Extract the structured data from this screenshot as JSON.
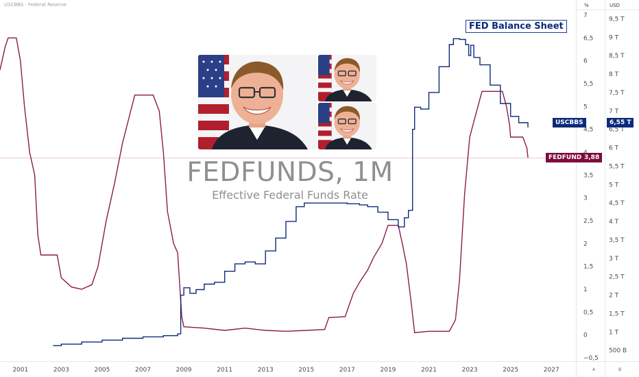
{
  "header": {
    "source_title": "USCBBS · Federal Reserve",
    "axis_left_unit": "%",
    "axis_right_unit": "USD"
  },
  "corner_labels": {
    "left": "A",
    "right": "B"
  },
  "watermark": {
    "symbol": "FEDFUNDS, 1M",
    "description": "Effective Federal Funds Rate"
  },
  "annotation": {
    "text": "FED Balance Sheet"
  },
  "photos": [
    {
      "subject": "portrait",
      "background": "us-flag"
    },
    {
      "subject": "portrait",
      "background": "us-flag"
    },
    {
      "subject": "portrait",
      "background": "us-flag"
    }
  ],
  "tags": {
    "balance_sheet": {
      "name": "USCBBS",
      "value": "6,55 T"
    },
    "fed_funds": {
      "name": "FEDFUNDS",
      "value": "3,88"
    }
  },
  "colors": {
    "fedfunds_line": "#8b1a45",
    "balance_line": "#0b2a7a",
    "fedfunds_tag": "#7d0b3d",
    "balance_tag": "#0b2a7a",
    "axis_text": "#4a4a4a",
    "crosshair": "#e6c7d1"
  },
  "chart_data": {
    "type": "line",
    "x_axis": {
      "ticks": [
        "2001",
        "2003",
        "2005",
        "2007",
        "2009",
        "2011",
        "2013",
        "2015",
        "2017",
        "2019",
        "2021",
        "2023",
        "2025",
        "2027"
      ],
      "range": [
        2000.0,
        2028.2
      ]
    },
    "y_axes": {
      "left": {
        "unit": "%",
        "ticks": [
          "−0,5",
          "0",
          "0,5",
          "1",
          "1,5",
          "2",
          "2,5",
          "3",
          "3,5",
          "4",
          "4,5",
          "5",
          "5,5",
          "6",
          "6,5",
          "7"
        ],
        "range": [
          -0.5,
          7.0
        ]
      },
      "right": {
        "unit": "USD",
        "ticks": [
          "500 B",
          "1 T",
          "1,5 T",
          "2 T",
          "2,5 T",
          "3 T",
          "3,5 T",
          "4 T",
          "4,5 T",
          "5 T",
          "5,5 T",
          "6 T",
          "6,5 T",
          "7 T",
          "7,5 T",
          "8 T",
          "8,5 T",
          "9 T",
          "9,5 T"
        ],
        "range_trillions": [
          0.3,
          9.6
        ]
      }
    },
    "grid": false,
    "series": [
      {
        "name": "FEDFUNDS",
        "axis": "left",
        "unit": "%",
        "points": [
          [
            2000.0,
            5.8
          ],
          [
            2000.25,
            6.3
          ],
          [
            2000.4,
            6.5
          ],
          [
            2000.8,
            6.5
          ],
          [
            2001.0,
            6.0
          ],
          [
            2001.2,
            5.0
          ],
          [
            2001.45,
            4.0
          ],
          [
            2001.7,
            3.5
          ],
          [
            2001.85,
            2.2
          ],
          [
            2002.0,
            1.75
          ],
          [
            2002.8,
            1.75
          ],
          [
            2003.0,
            1.25
          ],
          [
            2003.5,
            1.05
          ],
          [
            2004.0,
            1.0
          ],
          [
            2004.5,
            1.1
          ],
          [
            2004.8,
            1.5
          ],
          [
            2005.2,
            2.5
          ],
          [
            2005.6,
            3.3
          ],
          [
            2006.0,
            4.2
          ],
          [
            2006.4,
            4.9
          ],
          [
            2006.6,
            5.25
          ],
          [
            2007.5,
            5.25
          ],
          [
            2007.8,
            4.9
          ],
          [
            2008.0,
            4.0
          ],
          [
            2008.2,
            2.7
          ],
          [
            2008.5,
            2.0
          ],
          [
            2008.7,
            1.8
          ],
          [
            2008.9,
            0.4
          ],
          [
            2009.0,
            0.18
          ],
          [
            2010.0,
            0.15
          ],
          [
            2011.0,
            0.1
          ],
          [
            2012.0,
            0.15
          ],
          [
            2013.0,
            0.1
          ],
          [
            2014.0,
            0.08
          ],
          [
            2015.0,
            0.1
          ],
          [
            2015.9,
            0.12
          ],
          [
            2016.1,
            0.38
          ],
          [
            2016.9,
            0.4
          ],
          [
            2017.1,
            0.66
          ],
          [
            2017.3,
            0.91
          ],
          [
            2017.6,
            1.15
          ],
          [
            2018.0,
            1.42
          ],
          [
            2018.3,
            1.7
          ],
          [
            2018.7,
            2.0
          ],
          [
            2019.0,
            2.4
          ],
          [
            2019.5,
            2.4
          ],
          [
            2019.7,
            2.0
          ],
          [
            2019.9,
            1.55
          ],
          [
            2020.15,
            0.65
          ],
          [
            2020.3,
            0.05
          ],
          [
            2021.0,
            0.08
          ],
          [
            2022.0,
            0.08
          ],
          [
            2022.3,
            0.33
          ],
          [
            2022.5,
            1.2
          ],
          [
            2022.75,
            3.1
          ],
          [
            2023.0,
            4.33
          ],
          [
            2023.3,
            4.83
          ],
          [
            2023.6,
            5.33
          ],
          [
            2024.6,
            5.33
          ],
          [
            2024.8,
            5.0
          ],
          [
            2024.95,
            4.6
          ],
          [
            2025.0,
            4.33
          ],
          [
            2025.6,
            4.33
          ],
          [
            2025.8,
            4.09
          ],
          [
            2025.85,
            3.88
          ]
        ]
      },
      {
        "name": "USCBBS",
        "axis": "right",
        "unit": "USD trillions",
        "points": [
          [
            2002.6,
            0.63
          ],
          [
            2003.0,
            0.67
          ],
          [
            2004.0,
            0.73
          ],
          [
            2005.0,
            0.78
          ],
          [
            2006.0,
            0.83
          ],
          [
            2007.0,
            0.87
          ],
          [
            2008.0,
            0.9
          ],
          [
            2008.7,
            0.95
          ],
          [
            2008.85,
            2.0
          ],
          [
            2009.0,
            2.2
          ],
          [
            2009.3,
            2.05
          ],
          [
            2009.6,
            2.15
          ],
          [
            2010.0,
            2.3
          ],
          [
            2010.5,
            2.35
          ],
          [
            2011.0,
            2.65
          ],
          [
            2011.5,
            2.85
          ],
          [
            2012.0,
            2.9
          ],
          [
            2012.5,
            2.85
          ],
          [
            2013.0,
            3.2
          ],
          [
            2013.5,
            3.55
          ],
          [
            2014.0,
            4.0
          ],
          [
            2014.5,
            4.4
          ],
          [
            2014.9,
            4.5
          ],
          [
            2016.0,
            4.5
          ],
          [
            2017.0,
            4.48
          ],
          [
            2017.6,
            4.45
          ],
          [
            2018.0,
            4.4
          ],
          [
            2018.5,
            4.25
          ],
          [
            2019.0,
            4.05
          ],
          [
            2019.5,
            3.85
          ],
          [
            2019.8,
            4.1
          ],
          [
            2020.0,
            4.3
          ],
          [
            2020.2,
            6.5
          ],
          [
            2020.3,
            7.1
          ],
          [
            2020.6,
            7.05
          ],
          [
            2021.0,
            7.5
          ],
          [
            2021.5,
            8.2
          ],
          [
            2022.0,
            8.8
          ],
          [
            2022.2,
            8.96
          ],
          [
            2022.5,
            8.94
          ],
          [
            2022.8,
            8.8
          ],
          [
            2022.95,
            8.5
          ],
          [
            2023.05,
            8.78
          ],
          [
            2023.2,
            8.45
          ],
          [
            2023.5,
            8.25
          ],
          [
            2024.0,
            7.7
          ],
          [
            2024.5,
            7.2
          ],
          [
            2025.0,
            6.85
          ],
          [
            2025.4,
            6.68
          ],
          [
            2025.85,
            6.55
          ]
        ]
      }
    ],
    "last_values": {
      "FEDFUNDS": 3.88,
      "USCBBS": 6.55
    }
  }
}
